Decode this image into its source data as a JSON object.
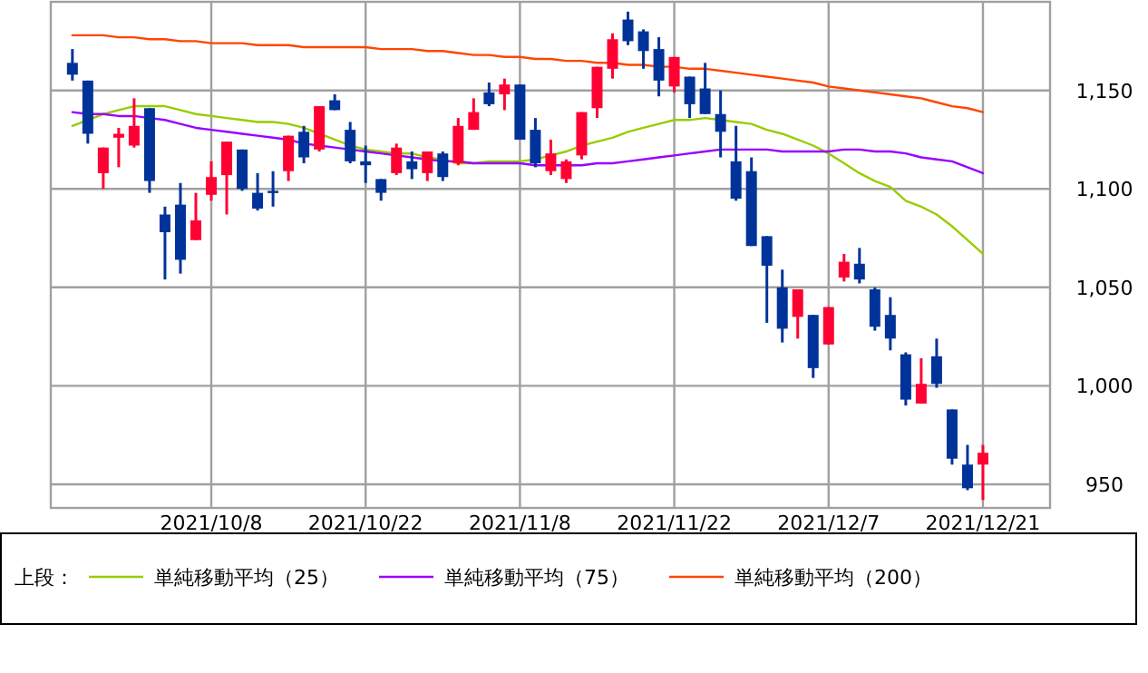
{
  "chart_data": {
    "type": "candlestick",
    "categories": [
      null,
      null,
      null,
      null,
      null,
      null,
      null,
      null,
      null,
      "2021/10/8",
      null,
      null,
      null,
      null,
      null,
      null,
      null,
      null,
      null,
      "2021/10/22",
      null,
      null,
      null,
      null,
      null,
      null,
      null,
      null,
      null,
      "2021/11/8",
      null,
      null,
      null,
      null,
      null,
      null,
      null,
      null,
      null,
      "2021/11/22",
      null,
      null,
      null,
      null,
      null,
      null,
      null,
      null,
      null,
      "2021/12/7",
      null,
      null,
      null,
      null,
      null,
      null,
      null,
      null,
      null,
      "2021/12/21"
    ],
    "ohlc": [
      [
        1164,
        1171,
        1155,
        1158
      ],
      [
        1155,
        1155,
        1123,
        1128
      ],
      [
        1108,
        1121,
        1100,
        1121
      ],
      [
        1126,
        1131,
        1111,
        1128
      ],
      [
        1122,
        1146,
        1121,
        1132
      ],
      [
        1141,
        1141,
        1098,
        1104
      ],
      [
        1087,
        1091,
        1054,
        1078
      ],
      [
        1092,
        1103,
        1057,
        1064
      ],
      [
        1074,
        1098,
        1074,
        1084
      ],
      [
        1097,
        1114,
        1094,
        1106
      ],
      [
        1107,
        1124,
        1087,
        1124
      ],
      [
        1120,
        1120,
        1099,
        1100
      ],
      [
        1098,
        1108,
        1089,
        1090
      ],
      [
        1099,
        1109,
        1091,
        1098
      ],
      [
        1109,
        1127,
        1104,
        1127
      ],
      [
        1129,
        1132,
        1113,
        1116
      ],
      [
        1120,
        1142,
        1119,
        1142
      ],
      [
        1145,
        1148,
        1140,
        1140
      ],
      [
        1130,
        1134,
        1113,
        1114
      ],
      [
        1114,
        1122,
        1103,
        1112
      ],
      [
        1105,
        1105,
        1094,
        1098
      ],
      [
        1108,
        1123,
        1107,
        1121
      ],
      [
        1114,
        1119,
        1105,
        1110
      ],
      [
        1108,
        1119,
        1104,
        1119
      ],
      [
        1118,
        1119,
        1104,
        1106
      ],
      [
        1113,
        1136,
        1112,
        1132
      ],
      [
        1130,
        1146,
        1130,
        1139
      ],
      [
        1149,
        1154,
        1142,
        1143
      ],
      [
        1148,
        1156,
        1140,
        1153
      ],
      [
        1153,
        1153,
        1125,
        1125
      ],
      [
        1130,
        1136,
        1111,
        1113
      ],
      [
        1109,
        1125,
        1107,
        1118
      ],
      [
        1105,
        1115,
        1103,
        1114
      ],
      [
        1117,
        1139,
        1115,
        1139
      ],
      [
        1141,
        1162,
        1136,
        1162
      ],
      [
        1161,
        1179,
        1156,
        1176
      ],
      [
        1186,
        1190,
        1173,
        1175
      ],
      [
        1180,
        1181,
        1161,
        1170
      ],
      [
        1171,
        1177,
        1147,
        1155
      ],
      [
        1152,
        1167,
        1149,
        1167
      ],
      [
        1157,
        1157,
        1136,
        1143
      ],
      [
        1151,
        1164,
        1138,
        1138
      ],
      [
        1138,
        1150,
        1116,
        1129
      ],
      [
        1114,
        1132,
        1094,
        1095
      ],
      [
        1109,
        1116,
        1071,
        1071
      ],
      [
        1076,
        1076,
        1032,
        1061
      ],
      [
        1050,
        1059,
        1022,
        1029
      ],
      [
        1035,
        1049,
        1024,
        1049
      ],
      [
        1036,
        1036,
        1004,
        1009
      ],
      [
        1021,
        1040,
        1021,
        1040
      ],
      [
        1055,
        1067,
        1053,
        1063
      ],
      [
        1062,
        1070,
        1052,
        1054
      ],
      [
        1049,
        1050,
        1028,
        1030
      ],
      [
        1036,
        1045,
        1018,
        1024
      ],
      [
        1016,
        1017,
        990,
        993
      ],
      [
        991,
        1014,
        991,
        1001
      ],
      [
        1015,
        1024,
        999,
        1001
      ],
      [
        988,
        988,
        960,
        963
      ],
      [
        960,
        970,
        947,
        948
      ],
      [
        960,
        970,
        942,
        966
      ]
    ],
    "colors": [
      "#003399",
      "#003399",
      "#ff0033",
      "#ff0033",
      "#ff0033",
      "#003399",
      "#003399",
      "#003399",
      "#ff0033",
      "#ff0033",
      "#ff0033",
      "#003399",
      "#003399",
      "#003399",
      "#ff0033",
      "#003399",
      "#ff0033",
      "#003399",
      "#003399",
      "#003399",
      "#003399",
      "#ff0033",
      "#003399",
      "#ff0033",
      "#003399",
      "#ff0033",
      "#ff0033",
      "#003399",
      "#ff0033",
      "#003399",
      "#003399",
      "#ff0033",
      "#ff0033",
      "#ff0033",
      "#ff0033",
      "#ff0033",
      "#003399",
      "#003399",
      "#003399",
      "#ff0033",
      "#003399",
      "#003399",
      "#003399",
      "#003399",
      "#003399",
      "#003399",
      "#003399",
      "#ff0033",
      "#003399",
      "#ff0033",
      "#ff0033",
      "#003399",
      "#003399",
      "#003399",
      "#003399",
      "#ff0033",
      "#003399",
      "#003399",
      "#003399",
      "#ff0033"
    ],
    "series": [
      {
        "name": "単純移動平均（25）",
        "type": "line",
        "color": "#99cc00",
        "values": [
          1132,
          1135,
          1138,
          1140,
          1142,
          1142,
          1142,
          1140,
          1138,
          1137,
          1136,
          1135,
          1134,
          1134,
          1133,
          1131,
          1128,
          1125,
          1122,
          1120,
          1119,
          1118,
          1118,
          1116,
          1115,
          1113,
          1113,
          1114,
          1114,
          1114,
          1115,
          1117,
          1119,
          1122,
          1124,
          1126,
          1129,
          1131,
          1133,
          1135,
          1135,
          1136,
          1135,
          1134,
          1133,
          1130,
          1128,
          1125,
          1122,
          1118,
          1113,
          1108,
          1104,
          1101,
          1094,
          1091,
          1087,
          1081,
          1074,
          1067
        ]
      },
      {
        "name": "単純移動平均（75）",
        "type": "line",
        "color": "#9900ff",
        "values": [
          1139,
          1138,
          1138,
          1137,
          1137,
          1136,
          1135,
          1133,
          1131,
          1130,
          1129,
          1128,
          1127,
          1126,
          1125,
          1123,
          1122,
          1121,
          1120,
          1119,
          1118,
          1117,
          1116,
          1115,
          1114,
          1114,
          1113,
          1113,
          1113,
          1113,
          1112,
          1112,
          1112,
          1112,
          1113,
          1113,
          1114,
          1115,
          1116,
          1117,
          1118,
          1119,
          1120,
          1120,
          1120,
          1120,
          1119,
          1119,
          1119,
          1119,
          1120,
          1120,
          1119,
          1119,
          1118,
          1116,
          1115,
          1114,
          1111,
          1108
        ]
      },
      {
        "name": "単純移動平均（200）",
        "type": "line",
        "color": "#ff4500",
        "values": [
          1178,
          1178,
          1178,
          1177,
          1177,
          1176,
          1176,
          1175,
          1175,
          1174,
          1174,
          1174,
          1173,
          1173,
          1173,
          1172,
          1172,
          1172,
          1172,
          1172,
          1171,
          1171,
          1171,
          1170,
          1170,
          1169,
          1168,
          1168,
          1167,
          1167,
          1166,
          1166,
          1165,
          1165,
          1164,
          1164,
          1163,
          1163,
          1162,
          1162,
          1161,
          1161,
          1160,
          1159,
          1158,
          1157,
          1156,
          1155,
          1154,
          1152,
          1151,
          1150,
          1149,
          1148,
          1147,
          1146,
          1144,
          1142,
          1141,
          1139
        ]
      }
    ],
    "legend_title": "上段：",
    "legend": "bottom",
    "grid": true,
    "ylim": [
      938,
      1195
    ],
    "yticks": [
      {
        "value": 950,
        "label": "950"
      },
      {
        "value": 1000,
        "label": "1,000"
      },
      {
        "value": 1050,
        "label": "1,050"
      },
      {
        "value": 1100,
        "label": "1,100"
      },
      {
        "value": 1150,
        "label": "1,150"
      }
    ]
  }
}
